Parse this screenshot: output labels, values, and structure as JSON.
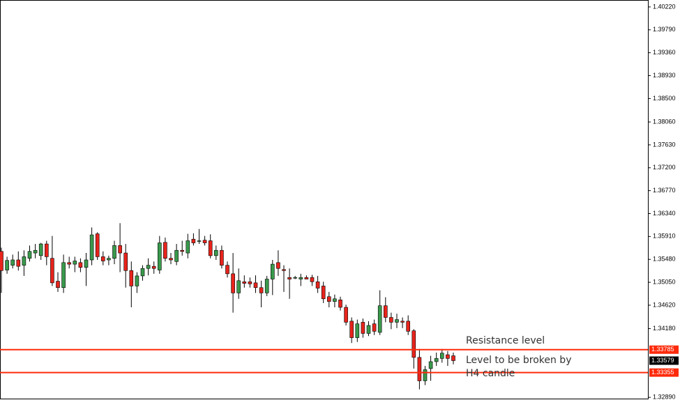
{
  "chart_data": {
    "type": "candlestick",
    "open": [
      1.3563,
      1.3528,
      1.3537,
      1.3547,
      1.3537,
      1.355,
      1.356,
      1.3555,
      1.3577,
      1.355,
      1.3507,
      1.3495,
      1.3542,
      1.3539,
      1.3542,
      1.3533,
      1.3547,
      1.3596,
      1.3553,
      1.3547,
      1.355,
      1.3574,
      1.356,
      1.3527,
      1.3498,
      1.3517,
      1.3531,
      1.3535,
      1.3528,
      1.358,
      1.355,
      1.3544,
      1.3565,
      1.356,
      1.3586,
      1.3582,
      1.3584,
      1.3583,
      1.3555,
      1.3565,
      1.3537,
      1.3521,
      1.3485,
      1.3506,
      1.3506,
      1.3504,
      1.3495,
      1.3485,
      1.3511,
      1.3542,
      1.3529,
      1.3514,
      1.3514,
      1.3511,
      1.3514,
      1.3514,
      1.3506,
      1.3498,
      1.3478,
      1.3469,
      1.3472,
      1.3458,
      1.3432,
      1.3401,
      1.343,
      1.3409,
      1.3427,
      1.3411,
      1.3461,
      1.3439,
      1.343,
      1.3432,
      1.3432,
      1.3414,
      1.3364,
      1.332,
      1.3343,
      1.3356,
      1.3362,
      1.3369,
      1.3367
    ],
    "high": [
      1.357,
      1.3553,
      1.3557,
      1.3563,
      1.3565,
      1.3574,
      1.3577,
      1.3579,
      1.3583,
      1.3592,
      1.3524,
      1.3557,
      1.3553,
      1.3553,
      1.355,
      1.356,
      1.3608,
      1.3599,
      1.3563,
      1.3555,
      1.3583,
      1.3616,
      1.3577,
      1.3544,
      1.3524,
      1.3537,
      1.355,
      1.3544,
      1.3592,
      1.3589,
      1.356,
      1.3577,
      1.3583,
      1.3596,
      1.3597,
      1.3605,
      1.3592,
      1.3595,
      1.3574,
      1.3574,
      1.3544,
      1.356,
      1.3531,
      1.3518,
      1.3514,
      1.3518,
      1.3508,
      1.3517,
      1.3547,
      1.3565,
      1.3537,
      1.3531,
      1.3517,
      1.3521,
      1.3518,
      1.3519,
      1.3517,
      1.3506,
      1.3487,
      1.3482,
      1.3478,
      1.3463,
      1.3439,
      1.3435,
      1.3437,
      1.3432,
      1.3435,
      1.349,
      1.3477,
      1.3448,
      1.3446,
      1.3439,
      1.3443,
      1.3417,
      1.338,
      1.3348,
      1.3367,
      1.3373,
      1.338,
      1.3376,
      1.3373
    ],
    "low": [
      1.3485,
      1.3521,
      1.3531,
      1.3527,
      1.3517,
      1.3544,
      1.355,
      1.3547,
      1.3537,
      1.3498,
      1.3487,
      1.3485,
      1.3531,
      1.3524,
      1.3524,
      1.3498,
      1.3537,
      1.3547,
      1.3537,
      1.3537,
      1.3539,
      1.3524,
      1.3495,
      1.3458,
      1.3485,
      1.3508,
      1.3518,
      1.3521,
      1.3521,
      1.3544,
      1.3539,
      1.3537,
      1.3555,
      1.355,
      1.3574,
      1.3577,
      1.3574,
      1.355,
      1.3547,
      1.3531,
      1.3514,
      1.3448,
      1.3474,
      1.3495,
      1.3495,
      1.3485,
      1.3458,
      1.3479,
      1.3481,
      1.3517,
      1.3487,
      1.3474,
      1.3511,
      1.3498,
      1.3511,
      1.3498,
      1.3485,
      1.3466,
      1.3458,
      1.3458,
      1.3452,
      1.3424,
      1.3391,
      1.3393,
      1.3401,
      1.3404,
      1.3406,
      1.3406,
      1.343,
      1.3417,
      1.3419,
      1.3419,
      1.3406,
      1.3343,
      1.3304,
      1.3312,
      1.332,
      1.3348,
      1.3354,
      1.3348,
      1.3351
    ],
    "close": [
      1.3527,
      1.3546,
      1.3547,
      1.3535,
      1.3553,
      1.3563,
      1.3565,
      1.3577,
      1.3553,
      1.3504,
      1.3495,
      1.3542,
      1.3539,
      1.3545,
      1.3533,
      1.3547,
      1.3594,
      1.3553,
      1.3545,
      1.355,
      1.3574,
      1.356,
      1.3527,
      1.3498,
      1.3517,
      1.3531,
      1.3537,
      1.3531,
      1.3579,
      1.355,
      1.3547,
      1.3565,
      1.3563,
      1.3583,
      1.3579,
      1.3583,
      1.3579,
      1.3555,
      1.3565,
      1.3537,
      1.3521,
      1.3485,
      1.3508,
      1.3503,
      1.3502,
      1.3495,
      1.3485,
      1.3511,
      1.3539,
      1.3531,
      1.3527,
      1.3511,
      1.3514,
      1.3514,
      1.3511,
      1.3506,
      1.3494,
      1.3474,
      1.3469,
      1.3474,
      1.3458,
      1.343,
      1.3401,
      1.3427,
      1.3409,
      1.3424,
      1.3413,
      1.3461,
      1.3439,
      1.343,
      1.3435,
      1.343,
      1.3413,
      1.3364,
      1.332,
      1.3341,
      1.3356,
      1.3362,
      1.3372,
      1.3362,
      1.33579
    ],
    "up_color": "#3a9a4c",
    "down_color": "#e8241c",
    "ylim": [
      1.3284,
      1.4035
    ],
    "yticks": [
      {
        "value": 1.4022,
        "label": "1.40220"
      },
      {
        "value": 1.3979,
        "label": "1.39790"
      },
      {
        "value": 1.3936,
        "label": "1.39360"
      },
      {
        "value": 1.3893,
        "label": "1.38930"
      },
      {
        "value": 1.385,
        "label": "1.38500"
      },
      {
        "value": 1.3806,
        "label": "1.38060"
      },
      {
        "value": 1.3763,
        "label": "1.37630"
      },
      {
        "value": 1.372,
        "label": "1.37200"
      },
      {
        "value": 1.3677,
        "label": "1.36770"
      },
      {
        "value": 1.3634,
        "label": "1.36340"
      },
      {
        "value": 1.3591,
        "label": "1.35910"
      },
      {
        "value": 1.3548,
        "label": "1.35480"
      },
      {
        "value": 1.3505,
        "label": "1.35050"
      },
      {
        "value": 1.3462,
        "label": "1.34620"
      },
      {
        "value": 1.3418,
        "label": "1.34180"
      },
      {
        "value": 1.3289,
        "label": "1.32890"
      }
    ],
    "levels": [
      {
        "value": 1.33785,
        "label": "1.33785",
        "color": "#ff2a0a"
      },
      {
        "value": 1.33355,
        "label": "1.33355",
        "color": "#ff2a0a"
      }
    ],
    "current_price": {
      "value": 1.33579,
      "label": "1.33579"
    },
    "annotations": [
      "Resistance level",
      "Level to be broken by H4 candle"
    ]
  }
}
